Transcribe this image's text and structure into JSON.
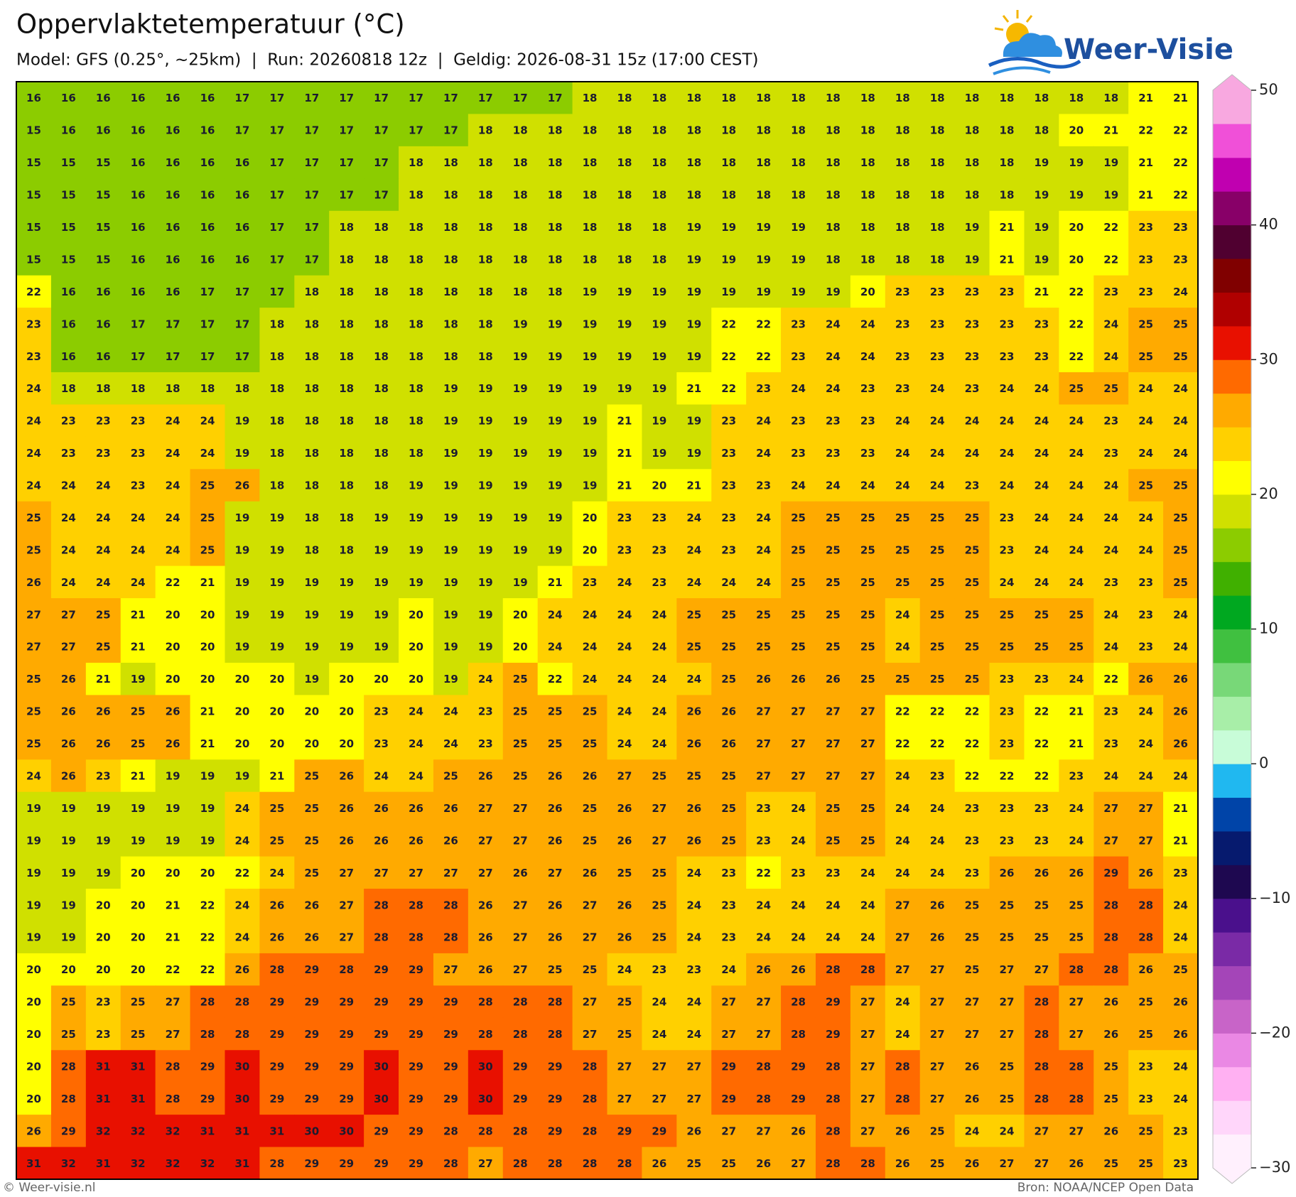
{
  "chart_data": {
    "type": "heatmap",
    "title": "Oppervlaktetemperatuur (°C)",
    "subtitle": "Model: GFS (0.25°, ~25km)  |  Run: 20260818 12z  |  Geldig: 2026-08-31 15z (17:00 CEST)",
    "values": [
      [
        16,
        16,
        16,
        16,
        16,
        16,
        17,
        17,
        17,
        17,
        17,
        17,
        17,
        17,
        17,
        17,
        18,
        18,
        18,
        18,
        18,
        18,
        18,
        18,
        18,
        18,
        18,
        18,
        18,
        18,
        18,
        18,
        21,
        21
      ],
      [
        15,
        16,
        16,
        16,
        16,
        16,
        17,
        17,
        17,
        17,
        17,
        17,
        17,
        18,
        18,
        18,
        18,
        18,
        18,
        18,
        18,
        18,
        18,
        18,
        18,
        18,
        18,
        18,
        18,
        18,
        20,
        21,
        22,
        22
      ],
      [
        15,
        15,
        15,
        16,
        16,
        16,
        16,
        17,
        17,
        17,
        17,
        18,
        18,
        18,
        18,
        18,
        18,
        18,
        18,
        18,
        18,
        18,
        18,
        18,
        18,
        18,
        18,
        18,
        18,
        19,
        19,
        19,
        21,
        22
      ],
      [
        15,
        15,
        15,
        16,
        16,
        16,
        16,
        17,
        17,
        17,
        17,
        18,
        18,
        18,
        18,
        18,
        18,
        18,
        18,
        18,
        18,
        18,
        18,
        18,
        18,
        18,
        18,
        18,
        18,
        19,
        19,
        19,
        21,
        22
      ],
      [
        15,
        15,
        15,
        16,
        16,
        16,
        16,
        17,
        17,
        18,
        18,
        18,
        18,
        18,
        18,
        18,
        18,
        18,
        18,
        19,
        19,
        19,
        19,
        18,
        18,
        18,
        18,
        19,
        21,
        19,
        20,
        22,
        23,
        23
      ],
      [
        15,
        15,
        15,
        16,
        16,
        16,
        16,
        17,
        17,
        18,
        18,
        18,
        18,
        18,
        18,
        18,
        18,
        18,
        18,
        19,
        19,
        19,
        19,
        18,
        18,
        18,
        18,
        19,
        21,
        19,
        20,
        22,
        23,
        23
      ],
      [
        22,
        16,
        16,
        16,
        16,
        17,
        17,
        17,
        18,
        18,
        18,
        18,
        18,
        18,
        18,
        18,
        19,
        19,
        19,
        19,
        19,
        19,
        19,
        19,
        20,
        23,
        23,
        23,
        23,
        21,
        22,
        23,
        23,
        24
      ],
      [
        23,
        16,
        16,
        17,
        17,
        17,
        17,
        18,
        18,
        18,
        18,
        18,
        18,
        18,
        19,
        19,
        19,
        19,
        19,
        19,
        22,
        22,
        23,
        24,
        24,
        23,
        23,
        23,
        23,
        23,
        22,
        24,
        25,
        25
      ],
      [
        23,
        16,
        16,
        17,
        17,
        17,
        17,
        18,
        18,
        18,
        18,
        18,
        18,
        18,
        19,
        19,
        19,
        19,
        19,
        19,
        22,
        22,
        23,
        24,
        24,
        23,
        23,
        23,
        23,
        23,
        22,
        24,
        25,
        25
      ],
      [
        24,
        18,
        18,
        18,
        18,
        18,
        18,
        18,
        18,
        18,
        18,
        18,
        19,
        19,
        19,
        19,
        19,
        19,
        19,
        21,
        22,
        23,
        24,
        24,
        23,
        23,
        24,
        23,
        24,
        24,
        25,
        25,
        24,
        24
      ],
      [
        24,
        23,
        23,
        23,
        24,
        24,
        19,
        18,
        18,
        18,
        18,
        18,
        19,
        19,
        19,
        19,
        19,
        21,
        19,
        19,
        23,
        24,
        23,
        23,
        23,
        24,
        24,
        24,
        24,
        24,
        24,
        23,
        24,
        24
      ],
      [
        24,
        23,
        23,
        23,
        24,
        24,
        19,
        18,
        18,
        18,
        18,
        18,
        19,
        19,
        19,
        19,
        19,
        21,
        19,
        19,
        23,
        24,
        23,
        23,
        23,
        24,
        24,
        24,
        24,
        24,
        24,
        23,
        24,
        24
      ],
      [
        24,
        24,
        24,
        23,
        24,
        25,
        26,
        18,
        18,
        18,
        18,
        19,
        19,
        19,
        19,
        19,
        19,
        21,
        20,
        21,
        23,
        23,
        24,
        24,
        24,
        24,
        24,
        23,
        24,
        24,
        24,
        24,
        25,
        25
      ],
      [
        25,
        24,
        24,
        24,
        24,
        25,
        19,
        19,
        18,
        18,
        19,
        19,
        19,
        19,
        19,
        19,
        20,
        23,
        23,
        24,
        23,
        24,
        25,
        25,
        25,
        25,
        25,
        25,
        23,
        24,
        24,
        24,
        24,
        25
      ],
      [
        25,
        24,
        24,
        24,
        24,
        25,
        19,
        19,
        18,
        18,
        19,
        19,
        19,
        19,
        19,
        19,
        20,
        23,
        23,
        24,
        23,
        24,
        25,
        25,
        25,
        25,
        25,
        25,
        23,
        24,
        24,
        24,
        24,
        25
      ],
      [
        26,
        24,
        24,
        24,
        22,
        21,
        19,
        19,
        19,
        19,
        19,
        19,
        19,
        19,
        19,
        21,
        23,
        24,
        23,
        24,
        24,
        24,
        25,
        25,
        25,
        25,
        25,
        25,
        24,
        24,
        24,
        23,
        23,
        25
      ],
      [
        27,
        27,
        25,
        21,
        20,
        20,
        19,
        19,
        19,
        19,
        19,
        20,
        19,
        19,
        20,
        24,
        24,
        24,
        24,
        25,
        25,
        25,
        25,
        25,
        25,
        24,
        25,
        25,
        25,
        25,
        25,
        24,
        23,
        24
      ],
      [
        27,
        27,
        25,
        21,
        20,
        20,
        19,
        19,
        19,
        19,
        19,
        20,
        19,
        19,
        20,
        24,
        24,
        24,
        24,
        25,
        25,
        25,
        25,
        25,
        25,
        24,
        25,
        25,
        25,
        25,
        25,
        24,
        23,
        24
      ],
      [
        25,
        26,
        21,
        19,
        20,
        20,
        20,
        20,
        19,
        20,
        20,
        20,
        19,
        24,
        25,
        22,
        24,
        24,
        24,
        24,
        25,
        26,
        26,
        26,
        25,
        25,
        25,
        25,
        23,
        23,
        24,
        22,
        26,
        26
      ],
      [
        25,
        26,
        26,
        25,
        26,
        21,
        20,
        20,
        20,
        20,
        23,
        24,
        24,
        23,
        25,
        25,
        25,
        24,
        24,
        26,
        26,
        27,
        27,
        27,
        27,
        22,
        22,
        22,
        23,
        22,
        21,
        23,
        24,
        26
      ],
      [
        25,
        26,
        26,
        25,
        26,
        21,
        20,
        20,
        20,
        20,
        23,
        24,
        24,
        23,
        25,
        25,
        25,
        24,
        24,
        26,
        26,
        27,
        27,
        27,
        27,
        22,
        22,
        22,
        23,
        22,
        21,
        23,
        24,
        26
      ],
      [
        24,
        26,
        23,
        21,
        19,
        19,
        19,
        21,
        25,
        26,
        24,
        24,
        25,
        26,
        25,
        26,
        26,
        27,
        25,
        25,
        25,
        27,
        27,
        27,
        27,
        24,
        23,
        22,
        22,
        22,
        23,
        24,
        24,
        24
      ],
      [
        19,
        19,
        19,
        19,
        19,
        19,
        24,
        25,
        25,
        26,
        26,
        26,
        26,
        27,
        27,
        26,
        25,
        26,
        27,
        26,
        25,
        23,
        24,
        25,
        25,
        24,
        24,
        23,
        23,
        23,
        24,
        27,
        27,
        21
      ],
      [
        19,
        19,
        19,
        19,
        19,
        19,
        24,
        25,
        25,
        26,
        26,
        26,
        26,
        27,
        27,
        26,
        25,
        26,
        27,
        26,
        25,
        23,
        24,
        25,
        25,
        24,
        24,
        23,
        23,
        23,
        24,
        27,
        27,
        21
      ],
      [
        19,
        19,
        19,
        20,
        20,
        20,
        22,
        24,
        25,
        27,
        27,
        27,
        27,
        27,
        26,
        27,
        26,
        25,
        25,
        24,
        23,
        22,
        23,
        23,
        24,
        24,
        24,
        23,
        26,
        26,
        26,
        29,
        26,
        23
      ],
      [
        19,
        19,
        20,
        20,
        21,
        22,
        24,
        26,
        26,
        27,
        28,
        28,
        28,
        26,
        27,
        26,
        27,
        26,
        25,
        24,
        23,
        24,
        24,
        24,
        24,
        27,
        26,
        25,
        25,
        25,
        25,
        28,
        28,
        24
      ],
      [
        19,
        19,
        20,
        20,
        21,
        22,
        24,
        26,
        26,
        27,
        28,
        28,
        28,
        26,
        27,
        26,
        27,
        26,
        25,
        24,
        23,
        24,
        24,
        24,
        24,
        27,
        26,
        25,
        25,
        25,
        25,
        28,
        28,
        24
      ],
      [
        20,
        20,
        20,
        20,
        22,
        22,
        26,
        28,
        29,
        28,
        29,
        29,
        27,
        26,
        27,
        25,
        25,
        24,
        23,
        23,
        24,
        26,
        26,
        28,
        28,
        27,
        27,
        25,
        27,
        27,
        28,
        28,
        26,
        25
      ],
      [
        20,
        25,
        23,
        25,
        27,
        28,
        28,
        29,
        29,
        29,
        29,
        29,
        29,
        28,
        28,
        28,
        27,
        25,
        24,
        24,
        27,
        27,
        28,
        29,
        27,
        24,
        27,
        27,
        27,
        28,
        27,
        26,
        25,
        26
      ],
      [
        20,
        25,
        23,
        25,
        27,
        28,
        28,
        29,
        29,
        29,
        29,
        29,
        29,
        28,
        28,
        28,
        27,
        25,
        24,
        24,
        27,
        27,
        28,
        29,
        27,
        24,
        27,
        27,
        27,
        28,
        27,
        26,
        25,
        26
      ],
      [
        20,
        28,
        31,
        31,
        28,
        29,
        30,
        29,
        29,
        29,
        30,
        29,
        29,
        30,
        29,
        29,
        28,
        27,
        27,
        27,
        29,
        28,
        29,
        28,
        27,
        28,
        27,
        26,
        25,
        28,
        28,
        25,
        23,
        24
      ],
      [
        20,
        28,
        31,
        31,
        28,
        29,
        30,
        29,
        29,
        29,
        30,
        29,
        29,
        30,
        29,
        29,
        28,
        27,
        27,
        27,
        29,
        28,
        29,
        28,
        27,
        28,
        27,
        26,
        25,
        28,
        28,
        25,
        23,
        24
      ],
      [
        26,
        29,
        32,
        32,
        32,
        31,
        31,
        31,
        30,
        30,
        29,
        29,
        28,
        28,
        28,
        29,
        28,
        29,
        29,
        26,
        27,
        27,
        26,
        28,
        27,
        26,
        25,
        24,
        24,
        27,
        27,
        26,
        25,
        23
      ],
      [
        31,
        32,
        31,
        32,
        32,
        32,
        31,
        28,
        29,
        29,
        29,
        29,
        28,
        27,
        28,
        28,
        28,
        28,
        26,
        25,
        25,
        26,
        27,
        28,
        28,
        26,
        25,
        26,
        27,
        27,
        26,
        25,
        25,
        23
      ]
    ],
    "clim": [
      -30,
      50
    ],
    "colors": [
      "#fff0fd",
      "#ffd6fa",
      "#ffb0f2",
      "#ea88e4",
      "#c864c8",
      "#a445b8",
      "#7a2aa6",
      "#4a108c",
      "#1e0850",
      "#061a6e",
      "#0044a8",
      "#20b8f0",
      "#c8fcd8",
      "#a8eea8",
      "#78d878",
      "#40c040",
      "#00a820",
      "#40b000",
      "#8ccc00",
      "#d0e000",
      "#ffff00",
      "#ffd000",
      "#ffaa00",
      "#ff6a00",
      "#e81000",
      "#b00000",
      "#800000",
      "#500030",
      "#880068",
      "#c000b0",
      "#f050d8",
      "#f8a8e0"
    ],
    "cticks": [
      {
        "value": -30,
        "label": "−30"
      },
      {
        "value": -20,
        "label": "−20"
      },
      {
        "value": -10,
        "label": "−10"
      },
      0,
      10,
      20,
      30,
      40,
      50
    ]
  },
  "logo": "Weer-Visie",
  "footer": {
    "left": "© Weer-visie.nl",
    "right": "Bron: NOAA/NCEP Open Data"
  }
}
